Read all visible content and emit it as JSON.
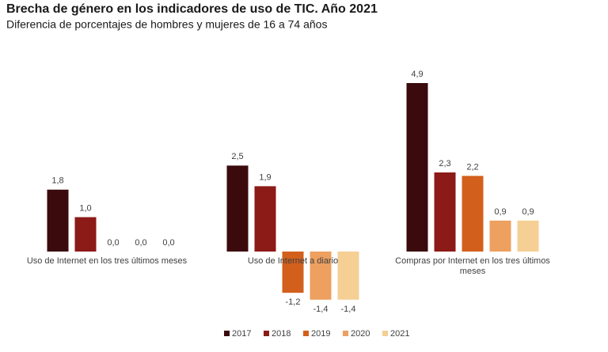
{
  "chart_data": {
    "type": "bar",
    "title": "Brecha de género en los indicadores de uso de TIC. Año 2021",
    "subtitle": "Diferencia de porcentajes de hombres y mujeres de 16 a 74 años",
    "categories": [
      "Uso de Internet en los tres últimos meses",
      "Uso de Internet a diario",
      "Compras por Internet en los tres últimos meses"
    ],
    "series": [
      {
        "name": "2017",
        "color": "#3b0a0c",
        "values": [
          1.8,
          2.5,
          4.9
        ],
        "value_labels": [
          "1,8",
          "2,5",
          "4,9"
        ]
      },
      {
        "name": "2018",
        "color": "#8c1a16",
        "values": [
          1.0,
          1.9,
          2.3
        ],
        "value_labels": [
          "1,0",
          "1,9",
          "2,3"
        ]
      },
      {
        "name": "2019",
        "color": "#d2601c",
        "values": [
          0.0,
          -1.2,
          2.2
        ],
        "value_labels": [
          "0,0",
          "-1,2",
          "2,2"
        ]
      },
      {
        "name": "2020",
        "color": "#eda060",
        "values": [
          0.0,
          -1.4,
          0.9
        ],
        "value_labels": [
          "0,0",
          "-1,4",
          "0,9"
        ]
      },
      {
        "name": "2021",
        "color": "#f5cf94",
        "values": [
          0.0,
          -1.4,
          0.9
        ],
        "value_labels": [
          "0,0",
          "-1,4",
          "0,9"
        ]
      }
    ],
    "legend": "bottom"
  }
}
